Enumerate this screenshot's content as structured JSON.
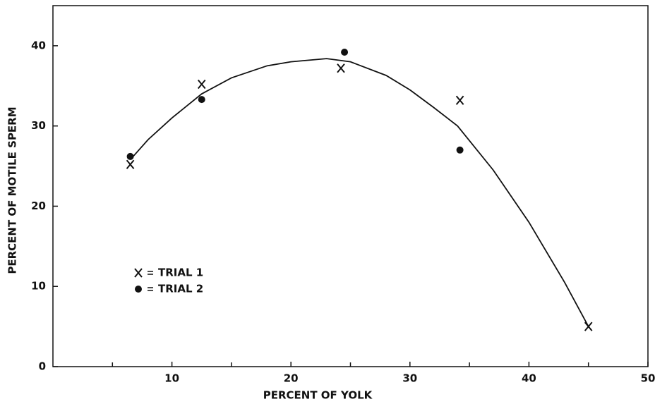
{
  "chart_data": {
    "type": "scatter",
    "xlabel": "PERCENT OF YOLK",
    "ylabel": "PERCENT OF MOTILE SPERM",
    "xlim": [
      0,
      50
    ],
    "ylim": [
      0,
      45
    ],
    "xticks": [
      10,
      20,
      30,
      40,
      50
    ],
    "xminorticks": [
      5,
      15,
      25,
      35,
      45
    ],
    "yticks": [
      0,
      10,
      20,
      30,
      40
    ],
    "series": [
      {
        "name": "TRIAL 1",
        "marker": "x",
        "color": "#111111",
        "x": [
          6.5,
          12.5,
          24.2,
          34.2,
          45
        ],
        "values": [
          25.2,
          35.2,
          37.2,
          33.2,
          5
        ]
      },
      {
        "name": "TRIAL 2",
        "marker": "dot",
        "color": "#111111",
        "x": [
          6.5,
          12.5,
          24.5,
          34.2
        ],
        "values": [
          26.2,
          33.3,
          39.2,
          27
        ]
      }
    ],
    "fit": {
      "color": "#111111",
      "x": [
        6.5,
        8,
        10,
        12.5,
        15,
        18,
        20,
        23,
        25,
        28,
        30,
        32,
        34,
        37,
        40,
        43,
        45
      ],
      "values": [
        25.8,
        28.3,
        31,
        34,
        36,
        37.5,
        38,
        38.4,
        38,
        36.3,
        34.5,
        32.3,
        30,
        24.5,
        18,
        10.5,
        5
      ]
    }
  }
}
